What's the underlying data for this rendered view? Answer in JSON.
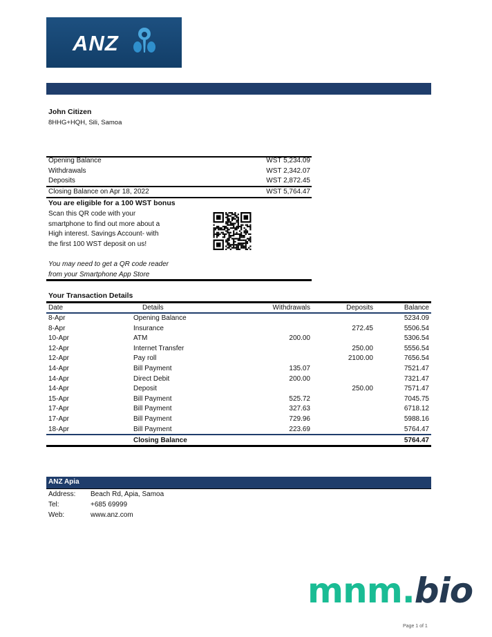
{
  "brand": {
    "logo_text": "ANZ",
    "header_color": "#1f3d6b"
  },
  "customer": {
    "name": "John Citizen",
    "address": "8HHG+HQH, Sili, Samoa"
  },
  "summary": [
    {
      "label": "Opening Balance",
      "value": "WST 5,234.09"
    },
    {
      "label": "Withdrawals",
      "value": "WST 2,342.07"
    },
    {
      "label": "Deposits",
      "value": "WST 2,872.45"
    },
    {
      "label": "Closing  Balance on Apr 18, 2022",
      "value": "WST 5,764.47"
    }
  ],
  "promo": {
    "title": "You are eligible for a 100 WST bonus",
    "lines": [
      "Scan this QR code with your",
      "smartphone to find out more about a",
      "High interest. Savings Account- with",
      "the first 100 WST deposit on us!"
    ],
    "note": [
      "You may need to get a QR code reader",
      "from your Smartphone App Store"
    ],
    "qr_icon": "qr-code"
  },
  "transactions": {
    "title": "Your Transaction Details",
    "headers": {
      "date": "Date",
      "details": "Details",
      "withdrawals": "Withdrawals",
      "deposits": "Deposits",
      "balance": "Balance"
    },
    "rows": [
      {
        "date": "8-Apr",
        "details": "Opening Balance",
        "withdrawal": "",
        "deposit": "",
        "balance": "5234.09"
      },
      {
        "date": "8-Apr",
        "details": "Insurance",
        "withdrawal": "",
        "deposit": "272.45",
        "balance": "5506.54"
      },
      {
        "date": "10-Apr",
        "details": "ATM",
        "withdrawal": "200.00",
        "deposit": "",
        "balance": "5306.54"
      },
      {
        "date": "12-Apr",
        "details": "Internet Transfer",
        "withdrawal": "",
        "deposit": "250.00",
        "balance": "5556.54"
      },
      {
        "date": "12-Apr",
        "details": "Pay roll",
        "withdrawal": "",
        "deposit": "2100.00",
        "balance": "7656.54"
      },
      {
        "date": "14-Apr",
        "details": "Bill Payment",
        "withdrawal": "135.07",
        "deposit": "",
        "balance": "7521.47"
      },
      {
        "date": "14-Apr",
        "details": "Direct Debit",
        "withdrawal": "200.00",
        "deposit": "",
        "balance": "7321.47"
      },
      {
        "date": "14-Apr",
        "details": "Deposit",
        "withdrawal": "",
        "deposit": "250.00",
        "balance": "7571.47"
      },
      {
        "date": "15-Apr",
        "details": "Bill Payment",
        "withdrawal": "525.72",
        "deposit": "",
        "balance": "7045.75"
      },
      {
        "date": "17-Apr",
        "details": "Bill Payment",
        "withdrawal": "327.63",
        "deposit": "",
        "balance": "6718.12"
      },
      {
        "date": "17-Apr",
        "details": "Bill Payment",
        "withdrawal": "729.96",
        "deposit": "",
        "balance": "5988.16"
      },
      {
        "date": "18-Apr",
        "details": "Bill Payment",
        "withdrawal": "223.69",
        "deposit": "",
        "balance": "5764.47"
      }
    ],
    "closing": {
      "label": "Closing Balance",
      "value": "5764.47"
    }
  },
  "branch": {
    "name": "ANZ Apia",
    "fields": [
      {
        "label": "Address:",
        "value": "Beach Rd, Apia, Samoa"
      },
      {
        "label": "Tel:",
        "value": "+685 69999"
      },
      {
        "label": "Web:",
        "value": "www.anz.com"
      }
    ]
  },
  "watermark": {
    "part1": "mnm.",
    "part2": "bio",
    "color1": "#1abc94",
    "color2": "#253a52"
  },
  "footer": {
    "page": "Page 1 of 1"
  }
}
